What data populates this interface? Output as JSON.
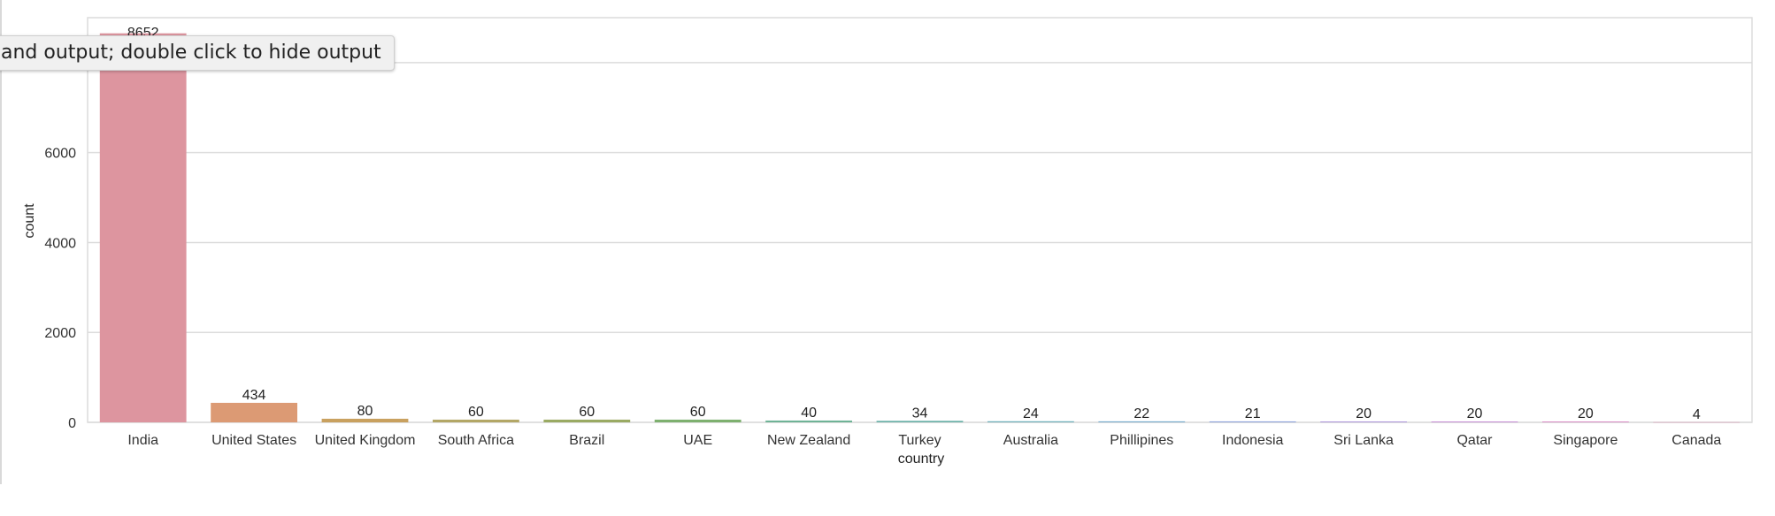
{
  "tooltip": {
    "text": "and output; double click to hide output"
  },
  "chart_data": {
    "type": "bar",
    "title": "",
    "xlabel": "country",
    "ylabel": "count",
    "ylim": [
      0,
      9000
    ],
    "yticks": [
      0,
      2000,
      4000,
      6000
    ],
    "grid": true,
    "categories": [
      "India",
      "United States",
      "United Kingdom",
      "South Africa",
      "Brazil",
      "UAE",
      "New Zealand",
      "Turkey",
      "Australia",
      "Phillipines",
      "Indonesia",
      "Sri Lanka",
      "Qatar",
      "Singapore",
      "Canada"
    ],
    "values": [
      8652,
      434,
      80,
      60,
      60,
      60,
      40,
      34,
      24,
      22,
      21,
      20,
      20,
      20,
      4
    ],
    "colors": [
      "#dd959f",
      "#dc9a74",
      "#c9a15f",
      "#b3a766",
      "#9aaa63",
      "#7eb06f",
      "#6fb396",
      "#6cb2a8",
      "#6eaeb9",
      "#75aacc",
      "#8da2db",
      "#ad97dc",
      "#c78fd6",
      "#d98ec6",
      "#de93b0"
    ]
  }
}
